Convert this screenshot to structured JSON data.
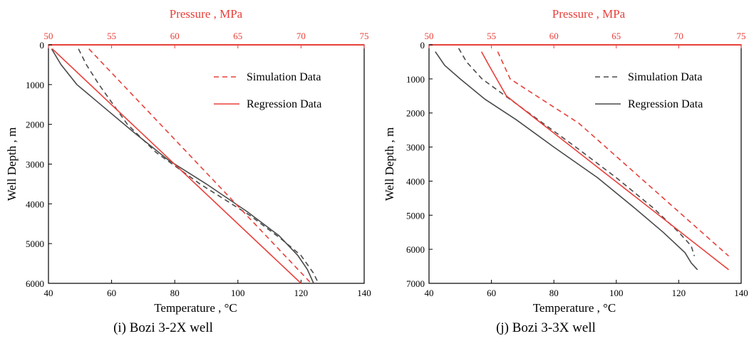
{
  "chart_data": [
    {
      "type": "line",
      "caption": "(i) Bozi 3-2X well",
      "xlabel": "Temperature , °C",
      "x2label": "Pressure , MPa",
      "ylabel": "Well Depth , m",
      "xlim": [
        40,
        140
      ],
      "x2lim": [
        50,
        75
      ],
      "ylim": [
        6000,
        0
      ],
      "x_ticks": [
        40,
        60,
        80,
        100,
        120,
        140
      ],
      "x2_ticks": [
        50,
        55,
        60,
        65,
        70,
        75
      ],
      "y_ticks": [
        0,
        1000,
        2000,
        3000,
        4000,
        5000,
        6000
      ],
      "legend": {
        "position": "top-right",
        "entries": [
          {
            "label": "Simulation Data",
            "style": "dashed",
            "color": "#e8403a"
          },
          {
            "label": "Regression Data",
            "style": "solid",
            "color": "#e8403a"
          }
        ]
      },
      "series": [
        {
          "axis": "temperature",
          "style": "dashed",
          "color": "#4a4a4a",
          "points": [
            [
              49.5,
              100
            ],
            [
              52,
              500
            ],
            [
              56,
              1000
            ],
            [
              65,
              2000
            ],
            [
              74,
              2700
            ],
            [
              88,
              3500
            ],
            [
              104,
              4300
            ],
            [
              114,
              4900
            ],
            [
              120,
              5300
            ],
            [
              124,
              5750
            ],
            [
              125.5,
              6000
            ]
          ]
        },
        {
          "axis": "temperature",
          "style": "solid",
          "color": "#4a4a4a",
          "points": [
            [
              41,
              100
            ],
            [
              44,
              500
            ],
            [
              49,
              1000
            ],
            [
              58,
              1600
            ],
            [
              67,
              2200
            ],
            [
              78,
              2900
            ],
            [
              90,
              3500
            ],
            [
              103,
              4200
            ],
            [
              113,
              4800
            ],
            [
              119,
              5300
            ],
            [
              122,
              5650
            ],
            [
              124,
              6000
            ]
          ]
        },
        {
          "axis": "pressure",
          "style": "dashed",
          "color": "#e8403a",
          "points": [
            [
              53.2,
              100
            ],
            [
              70.8,
              6000
            ]
          ]
        },
        {
          "axis": "pressure",
          "style": "solid",
          "color": "#e8403a",
          "points": [
            [
              50.3,
              100
            ],
            [
              70,
              6000
            ]
          ]
        }
      ]
    },
    {
      "type": "line",
      "caption": "(j) Bozi 3-3X well",
      "xlabel": "Temperature , °C",
      "x2label": "Pressure , MPa",
      "ylabel": "Well Depth , m",
      "xlim": [
        40,
        140
      ],
      "x2lim": [
        50,
        75
      ],
      "ylim": [
        7000,
        0
      ],
      "x_ticks": [
        40,
        60,
        80,
        100,
        120,
        140
      ],
      "x2_ticks": [
        50,
        55,
        60,
        65,
        70,
        75
      ],
      "y_ticks": [
        0,
        1000,
        2000,
        3000,
        4000,
        5000,
        6000,
        7000
      ],
      "legend": {
        "position": "top-right",
        "entries": [
          {
            "label": "Simulation Data",
            "style": "dashed",
            "color": "#4a4a4a"
          },
          {
            "label": "Regression Data",
            "style": "solid",
            "color": "#4a4a4a"
          }
        ]
      },
      "series": [
        {
          "axis": "temperature",
          "style": "dashed",
          "color": "#4a4a4a",
          "points": [
            [
              49.5,
              100
            ],
            [
              52,
              500
            ],
            [
              57,
              1000
            ],
            [
              66,
              1600
            ],
            [
              75,
              2200
            ],
            [
              87,
              3000
            ],
            [
              100,
              3900
            ],
            [
              112,
              4800
            ],
            [
              120,
              5500
            ],
            [
              124,
              5900
            ],
            [
              125,
              6200
            ]
          ]
        },
        {
          "axis": "temperature",
          "style": "solid",
          "color": "#4a4a4a",
          "points": [
            [
              42,
              200
            ],
            [
              45,
              600
            ],
            [
              50,
              1000
            ],
            [
              58,
              1600
            ],
            [
              68,
              2200
            ],
            [
              80,
              3000
            ],
            [
              94,
              3900
            ],
            [
              106,
              4800
            ],
            [
              115,
              5500
            ],
            [
              122,
              6100
            ],
            [
              124,
              6400
            ],
            [
              126,
              6600
            ]
          ]
        },
        {
          "axis": "pressure",
          "style": "dashed",
          "color": "#e8403a",
          "points": [
            [
              55.5,
              200
            ],
            [
              56.5,
              1000
            ],
            [
              62,
              2300
            ],
            [
              74,
              6200
            ]
          ]
        },
        {
          "axis": "pressure",
          "style": "solid",
          "color": "#e8403a",
          "points": [
            [
              54.2,
              200
            ],
            [
              54.8,
              600
            ],
            [
              56.2,
              1500
            ],
            [
              74,
              6600
            ]
          ]
        }
      ]
    }
  ]
}
